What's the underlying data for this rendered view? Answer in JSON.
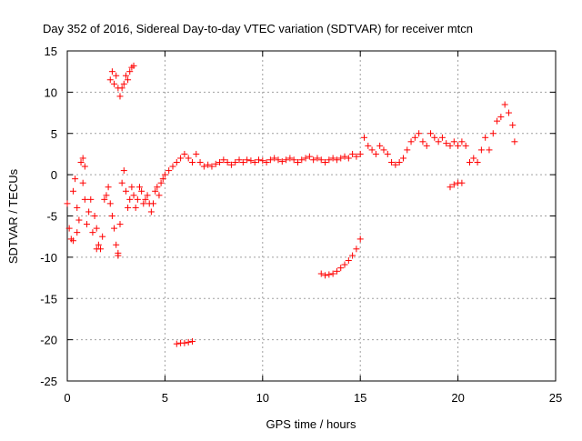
{
  "chart_data": {
    "type": "scatter",
    "title": "Day 352 of 2016, Sidereal Day-to-day VTEC variation (SDTVAR) for receiver mtcn",
    "xlabel": "GPS time / hours",
    "ylabel": "SDTVAR / TECUs",
    "xlim": [
      0,
      25
    ],
    "ylim": [
      -25,
      15
    ],
    "x_ticks": [
      0,
      5,
      10,
      15,
      20,
      25
    ],
    "y_ticks": [
      -25,
      -20,
      -15,
      -10,
      -5,
      0,
      5,
      10,
      15
    ],
    "grid": true,
    "marker": "plus",
    "color": "#ff0000",
    "series": [
      {
        "name": "SDTVAR",
        "points": [
          [
            0.0,
            -3.5
          ],
          [
            0.1,
            -6.5
          ],
          [
            0.2,
            -7.8
          ],
          [
            0.3,
            -2.0
          ],
          [
            0.4,
            -0.5
          ],
          [
            0.5,
            -4.0
          ],
          [
            0.6,
            -5.5
          ],
          [
            0.7,
            1.5
          ],
          [
            0.8,
            -1.0
          ],
          [
            0.9,
            -3.0
          ],
          [
            1.0,
            -6.0
          ],
          [
            1.1,
            -4.5
          ],
          [
            1.2,
            -3.0
          ],
          [
            1.3,
            -7.0
          ],
          [
            1.4,
            -5.0
          ],
          [
            1.5,
            -6.5
          ],
          [
            1.6,
            -8.5
          ],
          [
            1.7,
            -9.0
          ],
          [
            1.8,
            -7.5
          ],
          [
            1.9,
            -3.0
          ],
          [
            2.0,
            -2.5
          ],
          [
            2.1,
            -1.5
          ],
          [
            2.2,
            -3.5
          ],
          [
            2.3,
            -5.0
          ],
          [
            2.4,
            -6.5
          ],
          [
            2.5,
            -8.5
          ],
          [
            2.6,
            -9.5
          ],
          [
            2.7,
            -6.0
          ],
          [
            2.8,
            -1.0
          ],
          [
            2.9,
            0.5
          ],
          [
            3.0,
            -2.0
          ],
          [
            3.1,
            -4.0
          ],
          [
            3.2,
            -3.0
          ],
          [
            3.3,
            -1.5
          ],
          [
            3.4,
            -2.5
          ],
          [
            3.5,
            -4.0
          ],
          [
            3.6,
            -3.0
          ],
          [
            3.7,
            -1.5
          ],
          [
            3.8,
            -2.0
          ],
          [
            3.9,
            -3.5
          ],
          [
            4.0,
            -3.0
          ],
          [
            4.1,
            -2.5
          ],
          [
            4.2,
            -3.5
          ],
          [
            4.3,
            -4.5
          ],
          [
            4.4,
            -3.5
          ],
          [
            4.5,
            -2.0
          ],
          [
            4.6,
            -1.5
          ],
          [
            4.7,
            -2.5
          ],
          [
            4.8,
            -1.0
          ],
          [
            4.9,
            -0.5
          ],
          [
            2.2,
            11.5
          ],
          [
            2.3,
            12.5
          ],
          [
            2.4,
            11.0
          ],
          [
            2.5,
            12.0
          ],
          [
            2.6,
            10.5
          ],
          [
            2.7,
            9.5
          ],
          [
            2.8,
            10.5
          ],
          [
            2.9,
            11.0
          ],
          [
            3.0,
            12.0
          ],
          [
            3.1,
            11.5
          ],
          [
            3.2,
            12.5
          ],
          [
            3.3,
            13.0
          ],
          [
            3.4,
            13.2
          ],
          [
            0.3,
            -8.0
          ],
          [
            0.5,
            -7.0
          ],
          [
            0.9,
            1.0
          ],
          [
            0.8,
            2.0
          ],
          [
            2.6,
            -9.8
          ],
          [
            1.5,
            -9.0
          ],
          [
            5.0,
            0.0
          ],
          [
            5.2,
            0.5
          ],
          [
            5.4,
            1.0
          ],
          [
            5.6,
            1.5
          ],
          [
            5.8,
            2.0
          ],
          [
            6.0,
            2.5
          ],
          [
            6.2,
            2.0
          ],
          [
            6.4,
            1.5
          ],
          [
            6.6,
            2.5
          ],
          [
            6.8,
            1.5
          ],
          [
            7.0,
            1.0
          ],
          [
            7.2,
            1.2
          ],
          [
            7.4,
            1.0
          ],
          [
            7.6,
            1.3
          ],
          [
            7.8,
            1.5
          ],
          [
            8.0,
            1.8
          ],
          [
            8.2,
            1.5
          ],
          [
            8.4,
            1.2
          ],
          [
            8.6,
            1.5
          ],
          [
            8.8,
            1.8
          ],
          [
            9.0,
            1.5
          ],
          [
            9.2,
            1.8
          ],
          [
            9.4,
            1.7
          ],
          [
            9.6,
            1.5
          ],
          [
            9.8,
            1.8
          ],
          [
            10.0,
            1.7
          ],
          [
            10.2,
            1.5
          ],
          [
            10.4,
            1.8
          ],
          [
            10.6,
            2.0
          ],
          [
            10.8,
            1.8
          ],
          [
            11.0,
            1.6
          ],
          [
            11.2,
            1.8
          ],
          [
            11.4,
            2.0
          ],
          [
            11.6,
            1.8
          ],
          [
            11.8,
            1.5
          ],
          [
            12.0,
            1.8
          ],
          [
            12.2,
            2.0
          ],
          [
            12.4,
            2.2
          ],
          [
            12.6,
            1.8
          ],
          [
            12.8,
            2.0
          ],
          [
            13.0,
            1.8
          ],
          [
            13.2,
            1.5
          ],
          [
            13.4,
            1.8
          ],
          [
            13.6,
            2.0
          ],
          [
            13.8,
            1.8
          ],
          [
            14.0,
            2.0
          ],
          [
            14.2,
            2.2
          ],
          [
            14.4,
            2.0
          ],
          [
            14.6,
            2.5
          ],
          [
            14.8,
            2.2
          ],
          [
            15.0,
            2.5
          ],
          [
            15.2,
            4.5
          ],
          [
            15.4,
            3.5
          ],
          [
            15.6,
            3.0
          ],
          [
            15.8,
            2.5
          ],
          [
            16.0,
            3.5
          ],
          [
            16.2,
            3.0
          ],
          [
            16.4,
            2.5
          ],
          [
            16.6,
            1.5
          ],
          [
            16.8,
            1.2
          ],
          [
            17.0,
            1.5
          ],
          [
            17.2,
            2.0
          ],
          [
            17.4,
            3.0
          ],
          [
            17.6,
            4.0
          ],
          [
            17.8,
            4.5
          ],
          [
            18.0,
            5.0
          ],
          [
            18.2,
            4.0
          ],
          [
            18.4,
            3.5
          ],
          [
            18.6,
            5.0
          ],
          [
            18.8,
            4.5
          ],
          [
            19.0,
            4.0
          ],
          [
            19.2,
            4.5
          ],
          [
            19.4,
            3.8
          ],
          [
            19.6,
            3.5
          ],
          [
            19.8,
            4.0
          ],
          [
            20.0,
            3.5
          ],
          [
            20.2,
            4.0
          ],
          [
            20.4,
            3.5
          ],
          [
            20.6,
            1.5
          ],
          [
            20.8,
            2.0
          ],
          [
            21.0,
            1.5
          ],
          [
            21.2,
            3.0
          ],
          [
            21.4,
            4.5
          ],
          [
            21.6,
            3.0
          ],
          [
            21.8,
            5.0
          ],
          [
            22.0,
            6.5
          ],
          [
            22.2,
            7.0
          ],
          [
            22.4,
            8.5
          ],
          [
            22.6,
            7.5
          ],
          [
            22.8,
            6.0
          ],
          [
            22.9,
            4.0
          ],
          [
            19.6,
            -1.5
          ],
          [
            19.8,
            -1.2
          ],
          [
            20.0,
            -1.0
          ],
          [
            20.2,
            -1.0
          ],
          [
            5.6,
            -20.5
          ],
          [
            5.8,
            -20.4
          ],
          [
            6.0,
            -20.4
          ],
          [
            6.2,
            -20.3
          ],
          [
            6.4,
            -20.2
          ],
          [
            13.0,
            -12.0
          ],
          [
            13.2,
            -12.2
          ],
          [
            13.4,
            -12.1
          ],
          [
            13.6,
            -12.0
          ],
          [
            13.8,
            -11.7
          ],
          [
            14.0,
            -11.3
          ],
          [
            14.2,
            -10.9
          ],
          [
            14.4,
            -10.4
          ],
          [
            14.6,
            -9.8
          ],
          [
            14.8,
            -9.0
          ],
          [
            15.0,
            -7.8
          ]
        ]
      }
    ]
  }
}
